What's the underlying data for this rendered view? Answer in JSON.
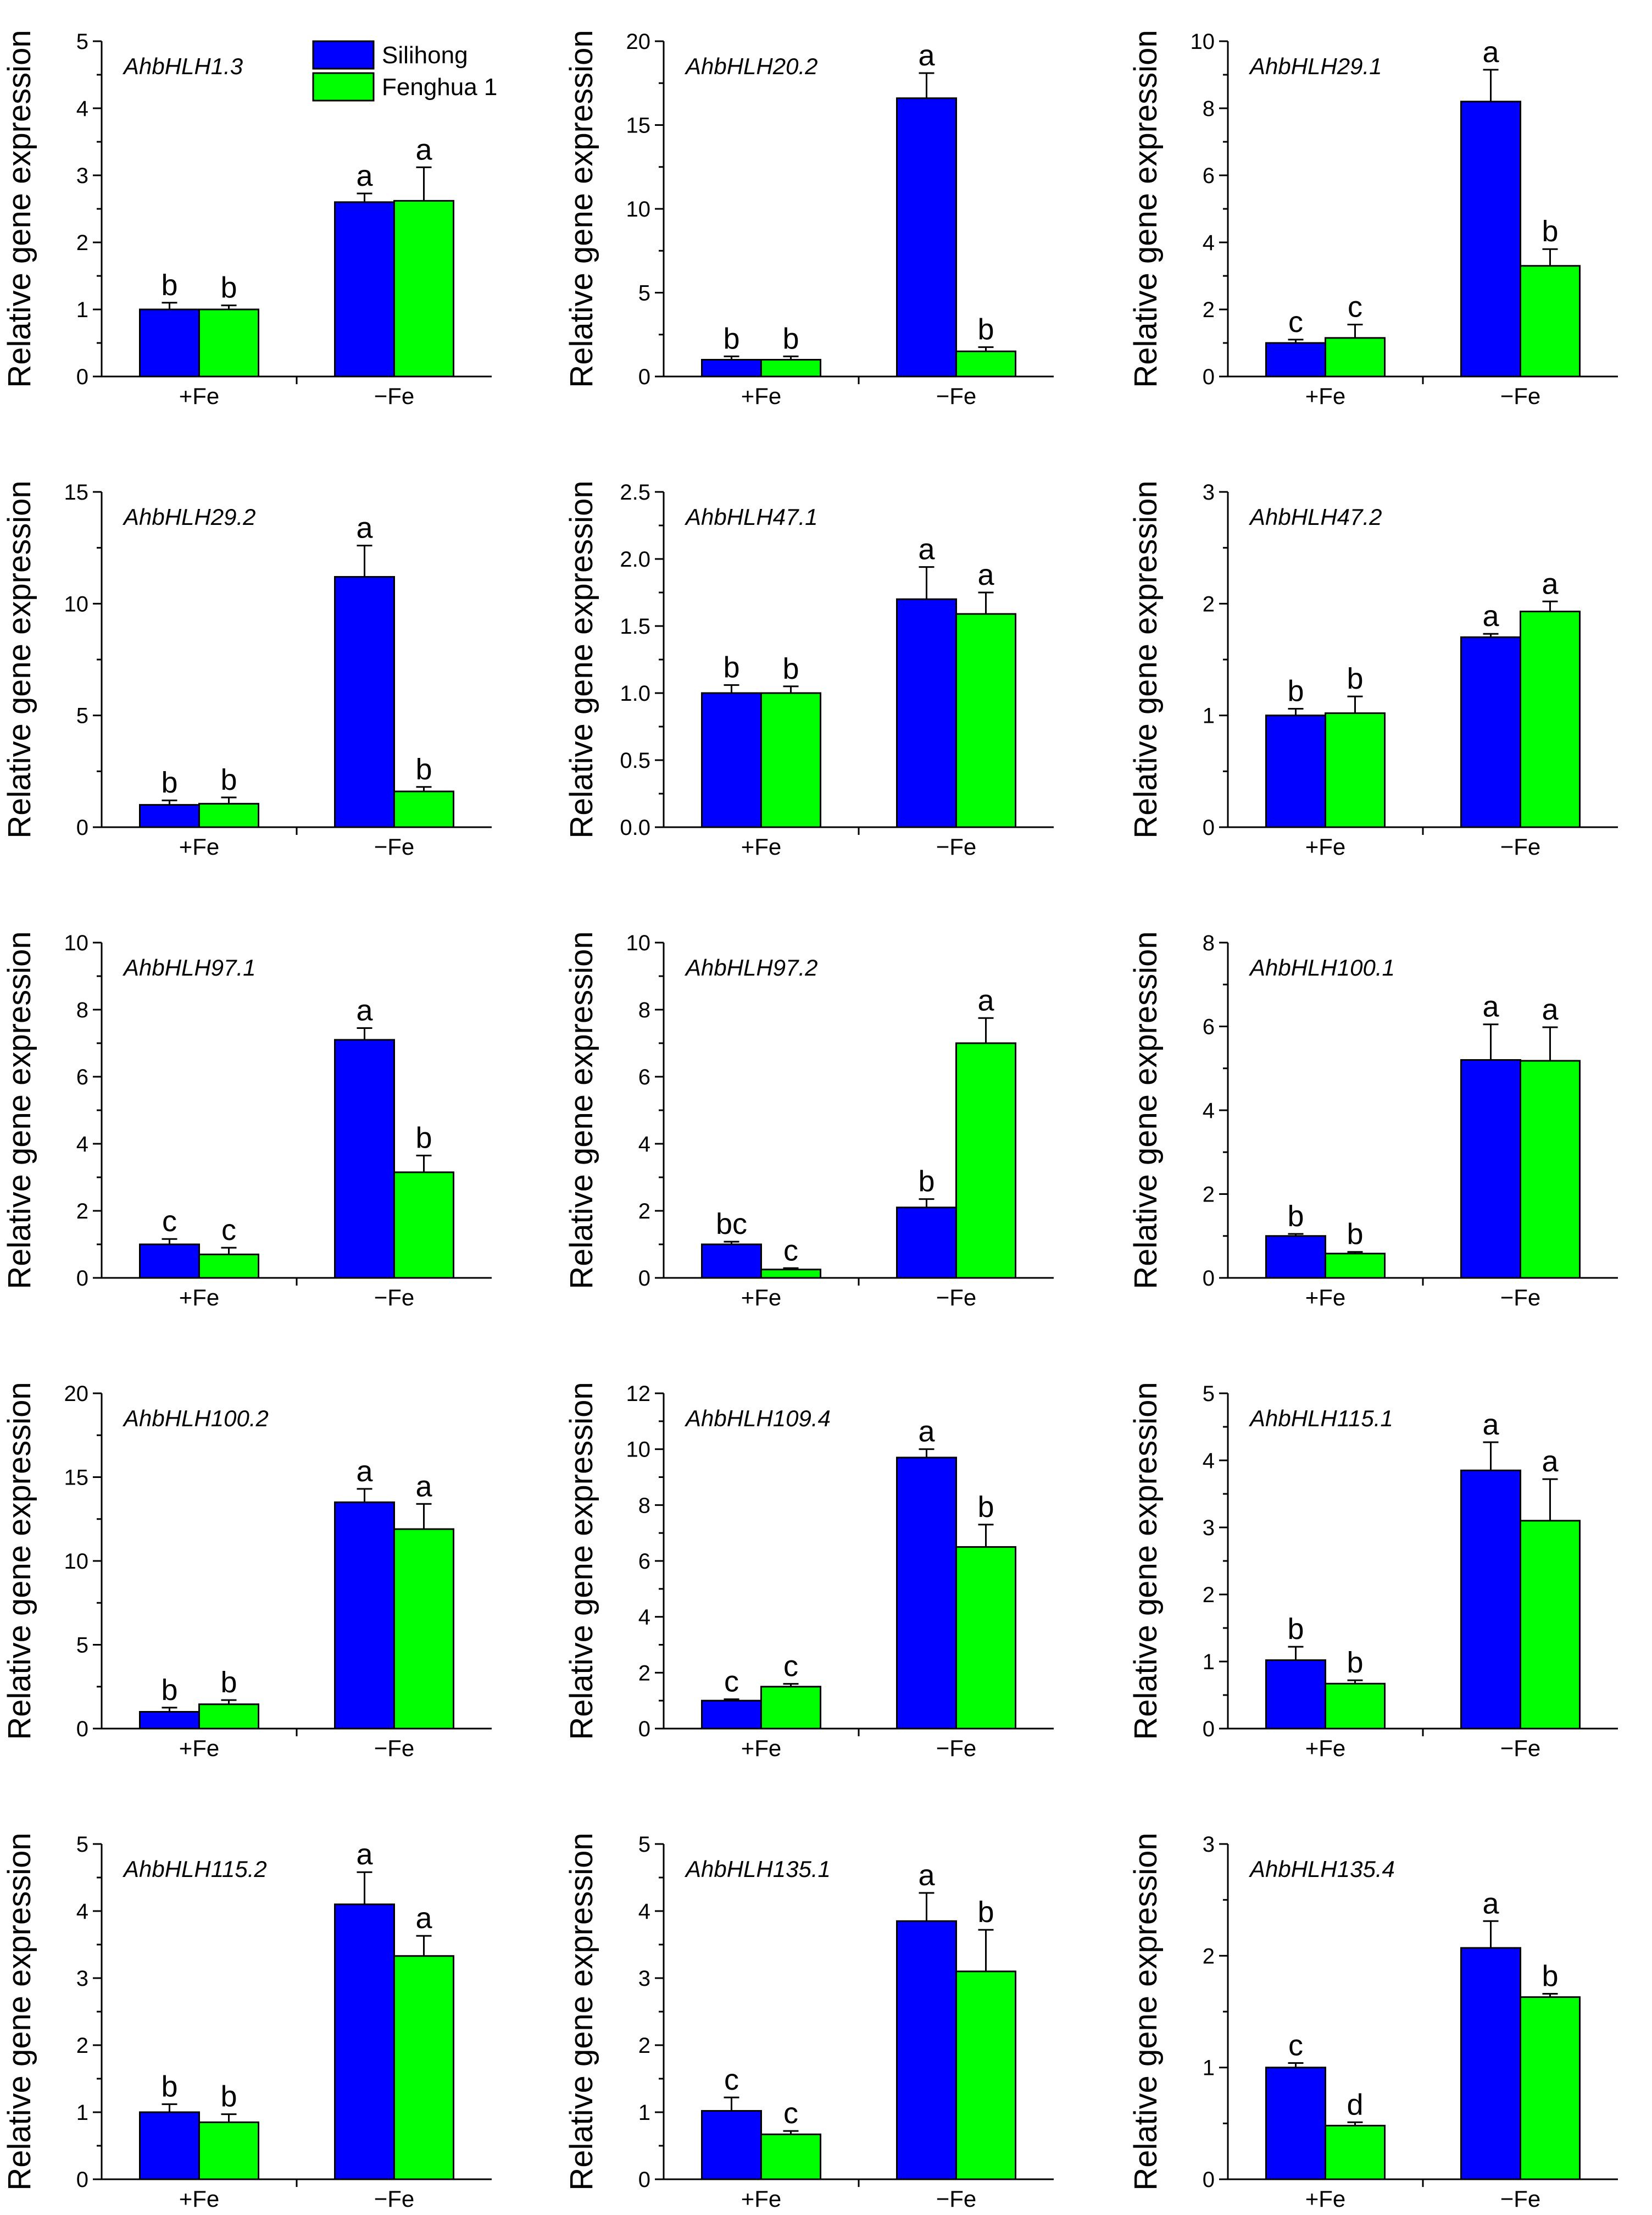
{
  "colors": {
    "silihong": "#0000ff",
    "fenghua": "#00ff00",
    "axis": "#000000"
  },
  "legend": [
    {
      "name": "Silihong",
      "color": "#0000ff"
    },
    {
      "name": "Fenghua 1",
      "color": "#00ff00"
    }
  ],
  "chart_data": [
    {
      "type": "bar",
      "title": "AhbHLH1.3",
      "categories": [
        "+Fe",
        "−Fe"
      ],
      "ylabel": "Relative gene expression",
      "ylim": [
        0,
        5
      ],
      "yticks": [
        0,
        1,
        2,
        3,
        4,
        5
      ],
      "series": [
        {
          "name": "Silihong",
          "values": [
            1.0,
            2.6
          ],
          "errors": [
            0.1,
            0.13
          ],
          "letters": [
            "b",
            "a"
          ]
        },
        {
          "name": "Fenghua 1",
          "values": [
            1.0,
            2.62
          ],
          "errors": [
            0.06,
            0.5
          ],
          "letters": [
            "b",
            "a"
          ]
        }
      ]
    },
    {
      "type": "bar",
      "title": "AhbHLH20.2",
      "categories": [
        "+Fe",
        "−Fe"
      ],
      "ylabel": "Relative gene expression",
      "ylim": [
        0,
        20
      ],
      "yticks": [
        0,
        5,
        10,
        15,
        20
      ],
      "series": [
        {
          "name": "Silihong",
          "values": [
            1.0,
            16.6
          ],
          "errors": [
            0.2,
            1.5
          ],
          "letters": [
            "b",
            "a"
          ]
        },
        {
          "name": "Fenghua 1",
          "values": [
            1.0,
            1.5
          ],
          "errors": [
            0.2,
            0.25
          ],
          "letters": [
            "b",
            "b"
          ]
        }
      ]
    },
    {
      "type": "bar",
      "title": "AhbHLH29.1",
      "categories": [
        "+Fe",
        "−Fe"
      ],
      "ylabel": "Relative gene expression",
      "ylim": [
        0,
        10
      ],
      "yticks": [
        0,
        2,
        4,
        6,
        8,
        10
      ],
      "series": [
        {
          "name": "Silihong",
          "values": [
            1.0,
            8.2
          ],
          "errors": [
            0.1,
            0.95
          ],
          "letters": [
            "c",
            "a"
          ]
        },
        {
          "name": "Fenghua 1",
          "values": [
            1.15,
            3.3
          ],
          "errors": [
            0.4,
            0.5
          ],
          "letters": [
            "c",
            "b"
          ]
        }
      ]
    },
    {
      "type": "bar",
      "title": "AhbHLH29.2",
      "categories": [
        "+Fe",
        "−Fe"
      ],
      "ylabel": "Relative gene expression",
      "ylim": [
        0,
        15
      ],
      "yticks": [
        0,
        5,
        10,
        15
      ],
      "series": [
        {
          "name": "Silihong",
          "values": [
            1.0,
            11.2
          ],
          "errors": [
            0.2,
            1.4
          ],
          "letters": [
            "b",
            "a"
          ]
        },
        {
          "name": "Fenghua 1",
          "values": [
            1.05,
            1.6
          ],
          "errors": [
            0.28,
            0.2
          ],
          "letters": [
            "b",
            "b"
          ]
        }
      ]
    },
    {
      "type": "bar",
      "title": "AhbHLH47.1",
      "categories": [
        "+Fe",
        "−Fe"
      ],
      "ylabel": "Relative gene expression",
      "ylim": [
        0,
        2.5
      ],
      "yticks": [
        0.0,
        0.5,
        1.0,
        1.5,
        2.0,
        2.5
      ],
      "series": [
        {
          "name": "Silihong",
          "values": [
            1.0,
            1.7
          ],
          "errors": [
            0.06,
            0.24
          ],
          "letters": [
            "b",
            "a"
          ]
        },
        {
          "name": "Fenghua 1",
          "values": [
            1.0,
            1.59
          ],
          "errors": [
            0.05,
            0.16
          ],
          "letters": [
            "b",
            "a"
          ]
        }
      ]
    },
    {
      "type": "bar",
      "title": "AhbHLH47.2",
      "categories": [
        "+Fe",
        "−Fe"
      ],
      "ylabel": "Relative gene expression",
      "ylim": [
        0,
        3
      ],
      "yticks": [
        0,
        1,
        2,
        3
      ],
      "series": [
        {
          "name": "Silihong",
          "values": [
            1.0,
            1.7
          ],
          "errors": [
            0.06,
            0.03
          ],
          "letters": [
            "b",
            "a"
          ]
        },
        {
          "name": "Fenghua 1",
          "values": [
            1.02,
            1.93
          ],
          "errors": [
            0.15,
            0.09
          ],
          "letters": [
            "b",
            "a"
          ]
        }
      ]
    },
    {
      "type": "bar",
      "title": "AhbHLH97.1",
      "categories": [
        "+Fe",
        "−Fe"
      ],
      "ylabel": "Relative gene expression",
      "ylim": [
        0,
        10
      ],
      "yticks": [
        0,
        2,
        4,
        6,
        8,
        10
      ],
      "series": [
        {
          "name": "Silihong",
          "values": [
            1.0,
            7.1
          ],
          "errors": [
            0.16,
            0.35
          ],
          "letters": [
            "c",
            "a"
          ]
        },
        {
          "name": "Fenghua 1",
          "values": [
            0.7,
            3.15
          ],
          "errors": [
            0.2,
            0.5
          ],
          "letters": [
            "c",
            "b"
          ]
        }
      ]
    },
    {
      "type": "bar",
      "title": "AhbHLH97.2",
      "categories": [
        "+Fe",
        "−Fe"
      ],
      "ylabel": "Relative gene expression",
      "ylim": [
        0,
        10
      ],
      "yticks": [
        0,
        2,
        4,
        6,
        8,
        10
      ],
      "series": [
        {
          "name": "Silihong",
          "values": [
            1.0,
            2.1
          ],
          "errors": [
            0.08,
            0.25
          ],
          "letters": [
            "bc",
            "b"
          ]
        },
        {
          "name": "Fenghua 1",
          "values": [
            0.25,
            7.0
          ],
          "errors": [
            0.04,
            0.75
          ],
          "letters": [
            "c",
            "a"
          ]
        }
      ]
    },
    {
      "type": "bar",
      "title": "AhbHLH100.1",
      "categories": [
        "+Fe",
        "−Fe"
      ],
      "ylabel": "Relative gene expression",
      "ylim": [
        0,
        8
      ],
      "yticks": [
        0,
        2,
        4,
        6,
        8
      ],
      "series": [
        {
          "name": "Silihong",
          "values": [
            1.0,
            5.2
          ],
          "errors": [
            0.05,
            0.85
          ],
          "letters": [
            "b",
            "a"
          ]
        },
        {
          "name": "Fenghua 1",
          "values": [
            0.58,
            5.18
          ],
          "errors": [
            0.04,
            0.8
          ],
          "letters": [
            "b",
            "a"
          ]
        }
      ]
    },
    {
      "type": "bar",
      "title": "AhbHLH100.2",
      "categories": [
        "+Fe",
        "−Fe"
      ],
      "ylabel": "Relative gene expression",
      "ylim": [
        0,
        20
      ],
      "yticks": [
        0,
        5,
        10,
        15,
        20
      ],
      "series": [
        {
          "name": "Silihong",
          "values": [
            1.0,
            13.5
          ],
          "errors": [
            0.25,
            0.8
          ],
          "letters": [
            "b",
            "a"
          ]
        },
        {
          "name": "Fenghua 1",
          "values": [
            1.45,
            11.9
          ],
          "errors": [
            0.25,
            1.5
          ],
          "letters": [
            "b",
            "a"
          ]
        }
      ]
    },
    {
      "type": "bar",
      "title": "AhbHLH109.4",
      "categories": [
        "+Fe",
        "−Fe"
      ],
      "ylabel": "Relative gene expression",
      "ylim": [
        0,
        12
      ],
      "yticks": [
        0,
        2,
        4,
        6,
        8,
        10,
        12
      ],
      "series": [
        {
          "name": "Silihong",
          "values": [
            1.0,
            9.7
          ],
          "errors": [
            0.05,
            0.3
          ],
          "letters": [
            "c",
            "a"
          ]
        },
        {
          "name": "Fenghua 1",
          "values": [
            1.5,
            6.5
          ],
          "errors": [
            0.1,
            0.8
          ],
          "letters": [
            "c",
            "b"
          ]
        }
      ]
    },
    {
      "type": "bar",
      "title": "AhbHLH115.1",
      "categories": [
        "+Fe",
        "−Fe"
      ],
      "ylabel": "Relative gene expression",
      "ylim": [
        0,
        5
      ],
      "yticks": [
        0,
        1,
        2,
        3,
        4,
        5
      ],
      "series": [
        {
          "name": "Silihong",
          "values": [
            1.02,
            3.85
          ],
          "errors": [
            0.2,
            0.42
          ],
          "letters": [
            "b",
            "a"
          ]
        },
        {
          "name": "Fenghua 1",
          "values": [
            0.67,
            3.1
          ],
          "errors": [
            0.05,
            0.62
          ],
          "letters": [
            "b",
            "a"
          ]
        }
      ]
    },
    {
      "type": "bar",
      "title": "AhbHLH115.2",
      "categories": [
        "+Fe",
        "−Fe"
      ],
      "ylabel": "Relative gene expression",
      "ylim": [
        0,
        5
      ],
      "yticks": [
        0,
        1,
        2,
        3,
        4,
        5
      ],
      "series": [
        {
          "name": "Silihong",
          "values": [
            1.0,
            4.1
          ],
          "errors": [
            0.12,
            0.48
          ],
          "letters": [
            "b",
            "a"
          ]
        },
        {
          "name": "Fenghua 1",
          "values": [
            0.85,
            3.33
          ],
          "errors": [
            0.12,
            0.3
          ],
          "letters": [
            "b",
            "a"
          ]
        }
      ]
    },
    {
      "type": "bar",
      "title": "AhbHLH135.1",
      "categories": [
        "+Fe",
        "−Fe"
      ],
      "ylabel": "Relative gene expression",
      "ylim": [
        0,
        5
      ],
      "yticks": [
        0,
        1,
        2,
        3,
        4,
        5
      ],
      "series": [
        {
          "name": "Silihong",
          "values": [
            1.02,
            3.85
          ],
          "errors": [
            0.2,
            0.42
          ],
          "letters": [
            "c",
            "a"
          ]
        },
        {
          "name": "Fenghua 1",
          "values": [
            0.67,
            3.1
          ],
          "errors": [
            0.05,
            0.62
          ],
          "letters": [
            "c",
            "b"
          ]
        }
      ]
    },
    {
      "type": "bar",
      "title": "AhbHLH135.4",
      "categories": [
        "+Fe",
        "−Fe"
      ],
      "ylabel": "Relative gene expression",
      "ylim": [
        0,
        3
      ],
      "yticks": [
        0,
        1,
        2,
        3
      ],
      "series": [
        {
          "name": "Silihong",
          "values": [
            1.0,
            2.07
          ],
          "errors": [
            0.04,
            0.24
          ],
          "letters": [
            "c",
            "a"
          ]
        },
        {
          "name": "Fenghua 1",
          "values": [
            0.48,
            1.63
          ],
          "errors": [
            0.03,
            0.03
          ],
          "letters": [
            "d",
            "b"
          ]
        }
      ]
    }
  ]
}
